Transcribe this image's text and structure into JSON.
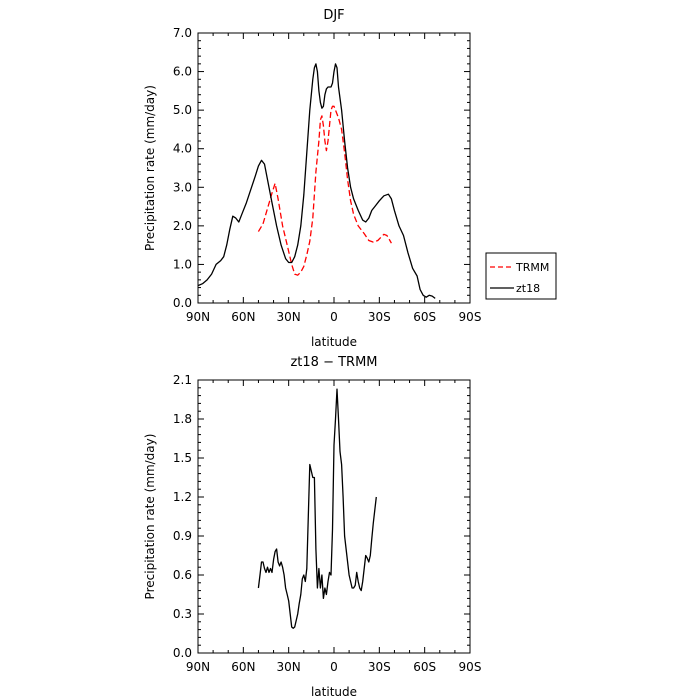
{
  "chart_data": [
    {
      "type": "line",
      "title": "DJF",
      "xlabel": "latitude",
      "ylabel": "Precipitation rate (mm/day)",
      "x_ticks": [
        {
          "value": 90,
          "label": "90N"
        },
        {
          "value": 60,
          "label": "60N"
        },
        {
          "value": 30,
          "label": "30N"
        },
        {
          "value": 0,
          "label": "0"
        },
        {
          "value": -30,
          "label": "30S"
        },
        {
          "value": -60,
          "label": "60S"
        },
        {
          "value": -90,
          "label": "90S"
        }
      ],
      "xlim": [
        90,
        -90
      ],
      "ylim": [
        0,
        7
      ],
      "y_ticks": [
        "0.0",
        "1.0",
        "2.0",
        "3.0",
        "4.0",
        "5.0",
        "6.0",
        "7.0"
      ],
      "legend": {
        "placement": "right"
      },
      "series": [
        {
          "name": "TRMM",
          "color": "#ff0000",
          "dash": true,
          "points": [
            [
              50,
              1.85
            ],
            [
              47,
              2.05
            ],
            [
              44,
              2.45
            ],
            [
              41,
              2.85
            ],
            [
              39,
              3.1
            ],
            [
              37,
              2.7
            ],
            [
              34,
              2.0
            ],
            [
              31,
              1.5
            ],
            [
              28,
              1.0
            ],
            [
              26,
              0.75
            ],
            [
              24,
              0.72
            ],
            [
              22,
              0.8
            ],
            [
              20,
              0.95
            ],
            [
              18,
              1.25
            ],
            [
              16,
              1.6
            ],
            [
              14,
              2.2
            ],
            [
              12,
              3.4
            ],
            [
              10,
              4.2
            ],
            [
              9,
              4.75
            ],
            [
              8,
              4.85
            ],
            [
              7,
              4.6
            ],
            [
              6,
              4.2
            ],
            [
              5,
              3.95
            ],
            [
              4,
              4.2
            ],
            [
              3,
              4.6
            ],
            [
              2,
              5.0
            ],
            [
              1,
              5.1
            ],
            [
              0,
              5.1
            ],
            [
              -1,
              5.0
            ],
            [
              -3,
              4.8
            ],
            [
              -5,
              4.5
            ],
            [
              -7,
              3.9
            ],
            [
              -9,
              3.2
            ],
            [
              -11,
              2.65
            ],
            [
              -13,
              2.3
            ],
            [
              -16,
              2.0
            ],
            [
              -20,
              1.8
            ],
            [
              -23,
              1.62
            ],
            [
              -26,
              1.58
            ],
            [
              -29,
              1.62
            ],
            [
              -31,
              1.7
            ],
            [
              -33,
              1.78
            ],
            [
              -35,
              1.75
            ],
            [
              -37,
              1.62
            ],
            [
              -38,
              1.55
            ]
          ]
        },
        {
          "name": "zt18",
          "color": "#000000",
          "dash": false,
          "points": [
            [
              90,
              0.45
            ],
            [
              87,
              0.5
            ],
            [
              84,
              0.6
            ],
            [
              81,
              0.75
            ],
            [
              78,
              1.0
            ],
            [
              75,
              1.1
            ],
            [
              73,
              1.2
            ],
            [
              71,
              1.5
            ],
            [
              69,
              1.9
            ],
            [
              67,
              2.25
            ],
            [
              65,
              2.2
            ],
            [
              63,
              2.1
            ],
            [
              61,
              2.3
            ],
            [
              58,
              2.6
            ],
            [
              55,
              2.95
            ],
            [
              52,
              3.3
            ],
            [
              50,
              3.55
            ],
            [
              48,
              3.7
            ],
            [
              46,
              3.6
            ],
            [
              44,
              3.2
            ],
            [
              41,
              2.6
            ],
            [
              38,
              2.0
            ],
            [
              35,
              1.5
            ],
            [
              32,
              1.15
            ],
            [
              30,
              1.05
            ],
            [
              28,
              1.05
            ],
            [
              26,
              1.2
            ],
            [
              24,
              1.5
            ],
            [
              22,
              2.0
            ],
            [
              20,
              2.8
            ],
            [
              18,
              3.9
            ],
            [
              16,
              5.0
            ],
            [
              14,
              5.8
            ],
            [
              13,
              6.1
            ],
            [
              12,
              6.2
            ],
            [
              11,
              6.0
            ],
            [
              10,
              5.5
            ],
            [
              9,
              5.2
            ],
            [
              8,
              5.05
            ],
            [
              7,
              5.1
            ],
            [
              6,
              5.4
            ],
            [
              5,
              5.55
            ],
            [
              4,
              5.6
            ],
            [
              3,
              5.6
            ],
            [
              2,
              5.6
            ],
            [
              1,
              5.7
            ],
            [
              0,
              6.0
            ],
            [
              -1,
              6.2
            ],
            [
              -2,
              6.1
            ],
            [
              -3,
              5.6
            ],
            [
              -5,
              5.0
            ],
            [
              -7,
              4.2
            ],
            [
              -9,
              3.5
            ],
            [
              -11,
              3.0
            ],
            [
              -13,
              2.7
            ],
            [
              -16,
              2.4
            ],
            [
              -19,
              2.15
            ],
            [
              -21,
              2.1
            ],
            [
              -23,
              2.2
            ],
            [
              -25,
              2.4
            ],
            [
              -27,
              2.5
            ],
            [
              -30,
              2.65
            ],
            [
              -33,
              2.78
            ],
            [
              -36,
              2.82
            ],
            [
              -38,
              2.7
            ],
            [
              -40,
              2.4
            ],
            [
              -43,
              2.0
            ],
            [
              -46,
              1.75
            ],
            [
              -49,
              1.3
            ],
            [
              -52,
              0.9
            ],
            [
              -55,
              0.7
            ],
            [
              -57,
              0.35
            ],
            [
              -59,
              0.2
            ],
            [
              -61,
              0.15
            ],
            [
              -63,
              0.2
            ],
            [
              -65,
              0.18
            ],
            [
              -67,
              0.12
            ]
          ]
        }
      ]
    },
    {
      "type": "line",
      "title": "zt18 − TRMM",
      "xlabel": "latitude",
      "ylabel": "Precipitation rate (mm/day)",
      "x_ticks": [
        {
          "value": 90,
          "label": "90N"
        },
        {
          "value": 60,
          "label": "60N"
        },
        {
          "value": 30,
          "label": "30N"
        },
        {
          "value": 0,
          "label": "0"
        },
        {
          "value": -30,
          "label": "30S"
        },
        {
          "value": -60,
          "label": "60S"
        },
        {
          "value": -90,
          "label": "90S"
        }
      ],
      "xlim": [
        90,
        -90
      ],
      "ylim": [
        0,
        2.1
      ],
      "y_ticks": [
        "0.0",
        "0.3",
        "0.6",
        "0.9",
        "1.2",
        "1.5",
        "1.8",
        "2.1"
      ],
      "series": [
        {
          "name": "",
          "color": "#000000",
          "dash": false,
          "points": [
            [
              50,
              0.5
            ],
            [
              49,
              0.6
            ],
            [
              48,
              0.7
            ],
            [
              47,
              0.7
            ],
            [
              46,
              0.65
            ],
            [
              45,
              0.62
            ],
            [
              44,
              0.66
            ],
            [
              43,
              0.62
            ],
            [
              42,
              0.65
            ],
            [
              41,
              0.62
            ],
            [
              40,
              0.72
            ],
            [
              39,
              0.78
            ],
            [
              38,
              0.8
            ],
            [
              37,
              0.7
            ],
            [
              36,
              0.67
            ],
            [
              35,
              0.7
            ],
            [
              34,
              0.66
            ],
            [
              33,
              0.6
            ],
            [
              32,
              0.5
            ],
            [
              31,
              0.45
            ],
            [
              30,
              0.4
            ],
            [
              29,
              0.3
            ],
            [
              28,
              0.2
            ],
            [
              27,
              0.19
            ],
            [
              26,
              0.2
            ],
            [
              25,
              0.25
            ],
            [
              24,
              0.3
            ],
            [
              23,
              0.38
            ],
            [
              22,
              0.45
            ],
            [
              21,
              0.57
            ],
            [
              20,
              0.6
            ],
            [
              19,
              0.55
            ],
            [
              18,
              0.65
            ],
            [
              17,
              1.05
            ],
            [
              16,
              1.45
            ],
            [
              15,
              1.4
            ],
            [
              14,
              1.35
            ],
            [
              13,
              1.35
            ],
            [
              12,
              0.8
            ],
            [
              11,
              0.5
            ],
            [
              10,
              0.65
            ],
            [
              9,
              0.5
            ],
            [
              8,
              0.6
            ],
            [
              7,
              0.42
            ],
            [
              6,
              0.5
            ],
            [
              5,
              0.45
            ],
            [
              4,
              0.55
            ],
            [
              3,
              0.62
            ],
            [
              2,
              0.6
            ],
            [
              1,
              0.95
            ],
            [
              0,
              1.6
            ],
            [
              -1,
              1.8
            ],
            [
              -2,
              2.03
            ],
            [
              -3,
              1.8
            ],
            [
              -4,
              1.55
            ],
            [
              -5,
              1.45
            ],
            [
              -6,
              1.2
            ],
            [
              -7,
              0.9
            ],
            [
              -8,
              0.8
            ],
            [
              -9,
              0.7
            ],
            [
              -10,
              0.6
            ],
            [
              -11,
              0.55
            ],
            [
              -12,
              0.5
            ],
            [
              -13,
              0.5
            ],
            [
              -14,
              0.52
            ],
            [
              -15,
              0.62
            ],
            [
              -16,
              0.55
            ],
            [
              -17,
              0.5
            ],
            [
              -18,
              0.48
            ],
            [
              -19,
              0.55
            ],
            [
              -20,
              0.65
            ],
            [
              -21,
              0.75
            ],
            [
              -22,
              0.73
            ],
            [
              -23,
              0.7
            ],
            [
              -24,
              0.75
            ],
            [
              -25,
              0.88
            ],
            [
              -26,
              1.0
            ],
            [
              -27,
              1.1
            ],
            [
              -28,
              1.2
            ]
          ]
        }
      ]
    }
  ]
}
